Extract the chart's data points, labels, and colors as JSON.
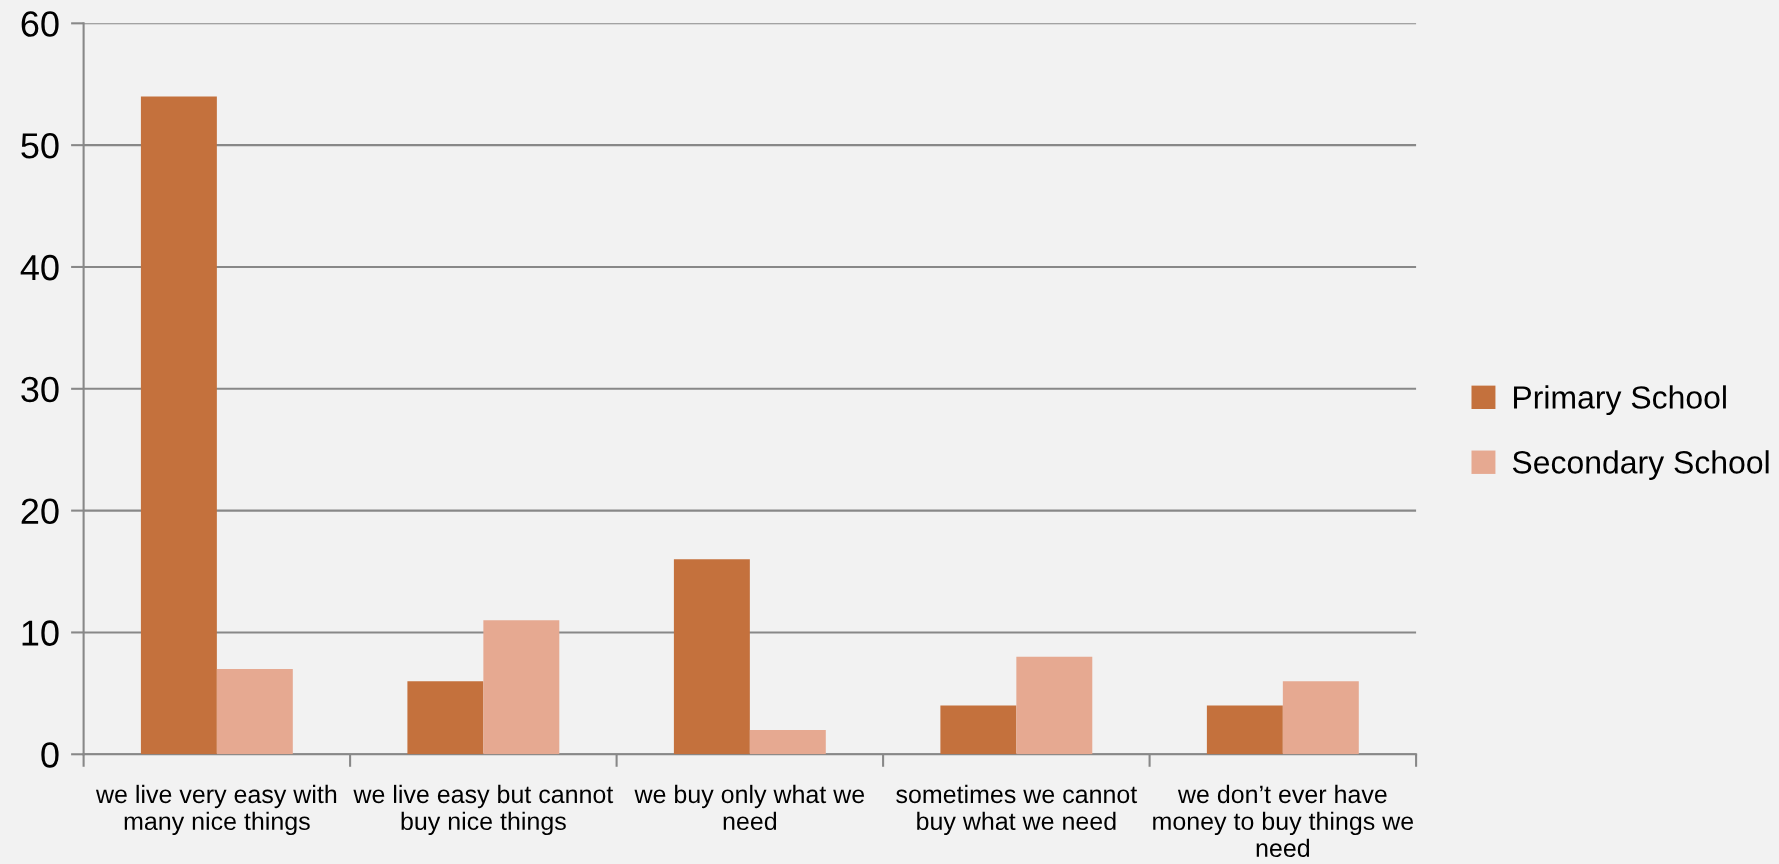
{
  "chart_data": {
    "type": "bar",
    "categories": [
      "we live very easy with\nmany nice things",
      "we live easy but cannot\nbuy nice things",
      "we buy only what we\nneed",
      "sometimes we cannot\nbuy what we need",
      "we don’t ever have\nmoney to buy things we\nneed"
    ],
    "series": [
      {
        "name": "Primary School",
        "color": "#c4713d",
        "values": [
          54,
          6,
          16,
          4,
          4
        ]
      },
      {
        "name": "Secondary School",
        "color": "#e6a991",
        "values": [
          7,
          11,
          2,
          8,
          6
        ]
      }
    ],
    "ylim": [
      0,
      60
    ],
    "yticks": [
      0,
      10,
      20,
      30,
      40,
      50,
      60
    ],
    "grid": "y",
    "legend": "right"
  }
}
